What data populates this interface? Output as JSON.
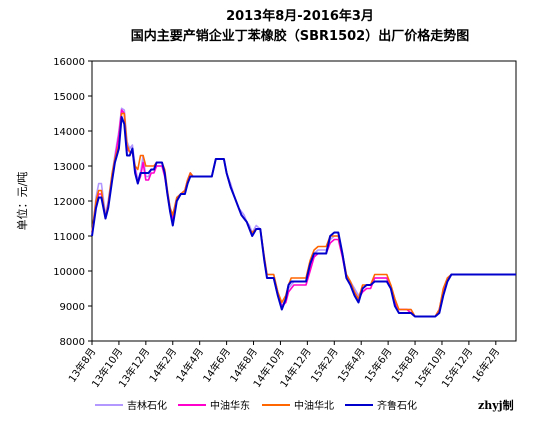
{
  "chart_data": {
    "type": "line",
    "title": "2013年8月-2016年3月",
    "subtitle": "国内主要产销企业丁苯橡胶（SBR1502）出厂价格走势图",
    "ylabel": "单位：元/吨",
    "xlabel": "",
    "ylim": [
      8000,
      16000
    ],
    "yticks": [
      8000,
      9000,
      10000,
      11000,
      12000,
      13000,
      14000,
      15000,
      16000
    ],
    "x_range": [
      0,
      31.5
    ],
    "xtick_positions": [
      0,
      2,
      4,
      6,
      8,
      10,
      12,
      14,
      16,
      18,
      20,
      22,
      24,
      26,
      28,
      30
    ],
    "xtick_labels": [
      "13年8月",
      "13年10月",
      "13年12月",
      "14年2月",
      "14年4月",
      "14年6月",
      "14年8月",
      "14年10月",
      "14年12月",
      "15年2月",
      "15年4月",
      "15年6月",
      "15年8月",
      "15年10月",
      "15年12月",
      "16年2月"
    ],
    "grid": false,
    "legend_position": "bottom",
    "note": "zhyj制",
    "series": [
      {
        "name": "吉林石化",
        "color": "#b399ff",
        "x": [
          0,
          0.3,
          0.5,
          0.7,
          1,
          1.2,
          1.5,
          1.7,
          2,
          2.2,
          2.4,
          2.6,
          2.8,
          3,
          3.2,
          3.4,
          3.6,
          3.8,
          4,
          4.2,
          4.4,
          4.6,
          4.8,
          5,
          5.2,
          5.4,
          5.6,
          5.8,
          6,
          6.3,
          6.6,
          6.9,
          7.1,
          7.3,
          7.5,
          7.7,
          8,
          8.3,
          8.6,
          8.9,
          9.2,
          9.5,
          9.8,
          10,
          10.3,
          10.6,
          10.9,
          11.1,
          11.3,
          11.5,
          11.7,
          11.9,
          12.2,
          12.5,
          12.8,
          13,
          13.2,
          13.5,
          13.8,
          14.1,
          14.4,
          14.6,
          14.8,
          15,
          15.3,
          15.6,
          15.9,
          16.2,
          16.5,
          16.8,
          17.1,
          17.4,
          17.7,
          18,
          18.3,
          18.6,
          18.9,
          19.2,
          19.5,
          19.8,
          20.1,
          20.4,
          20.7,
          21,
          21.3,
          21.6,
          21.9,
          22.2,
          22.5,
          22.8,
          23.1,
          23.4,
          23.7,
          24,
          24.3,
          24.6,
          24.9,
          25.2,
          25.5,
          25.8,
          26.1,
          26.4,
          26.7,
          27,
          27.3,
          27.6,
          27.9,
          28.2,
          28.5,
          28.8,
          29.1,
          29.4,
          29.7,
          30,
          30.3,
          30.6,
          30.9,
          31.2,
          31.5
        ],
        "values": [
          11000,
          12100,
          12500,
          12500,
          11600,
          12000,
          12800,
          13300,
          14000,
          14650,
          14600,
          13700,
          13500,
          13600,
          13000,
          12600,
          12800,
          13300,
          12700,
          12700,
          12900,
          12900,
          13000,
          13000,
          13000,
          12800,
          12300,
          11800,
          11600,
          12100,
          12200,
          12300,
          12600,
          12800,
          12700,
          12700,
          12700,
          12700,
          12700,
          12700,
          13200,
          13200,
          13200,
          12800,
          12500,
          12100,
          11800,
          11700,
          11600,
          11400,
          11300,
          11100,
          11300,
          11200,
          10400,
          9900,
          9900,
          9900,
          9400,
          9000,
          9200,
          9500,
          9600,
          9700,
          9700,
          9700,
          9700,
          10100,
          10500,
          10600,
          10600,
          10600,
          10900,
          11000,
          11000,
          10500,
          9900,
          9700,
          9500,
          9300,
          9500,
          9600,
          9600,
          9800,
          9800,
          9800,
          9800,
          9600,
          9200,
          8900,
          8900,
          8900,
          8900,
          8700,
          8700,
          8700,
          8700,
          8700,
          8700,
          8900,
          9500,
          9800,
          9900,
          9900,
          9900,
          9900,
          9900,
          9900,
          9900,
          9900,
          9900,
          9900,
          9900,
          9900,
          9900,
          9900,
          9900,
          9900,
          9900
        ]
      },
      {
        "name": "中油华东",
        "color": "#ff00cc",
        "x": [
          0,
          0.3,
          0.5,
          0.7,
          1,
          1.2,
          1.5,
          1.7,
          2,
          2.2,
          2.4,
          2.6,
          2.8,
          3,
          3.2,
          3.4,
          3.6,
          3.8,
          4,
          4.2,
          4.4,
          4.6,
          4.8,
          5,
          5.2,
          5.4,
          5.6,
          5.8,
          6,
          6.3,
          6.6,
          6.9,
          7.1,
          7.3,
          7.5,
          7.7,
          8,
          8.3,
          8.6,
          8.9,
          9.2,
          9.5,
          9.8,
          10,
          10.3,
          10.6,
          10.9,
          11.1,
          11.3,
          11.5,
          11.7,
          11.9,
          12.2,
          12.5,
          12.8,
          13,
          13.2,
          13.5,
          13.8,
          14.1,
          14.4,
          14.6,
          14.8,
          15,
          15.3,
          15.6,
          15.9,
          16.2,
          16.5,
          16.8,
          17.1,
          17.4,
          17.7,
          18,
          18.3,
          18.6,
          18.9,
          19.2,
          19.5,
          19.8,
          20.1,
          20.4,
          20.7,
          21,
          21.3,
          21.6,
          21.9,
          22.2,
          22.5,
          22.8,
          23.1,
          23.4,
          23.7,
          24,
          24.3,
          24.6,
          24.9,
          25.2,
          25.5,
          25.8,
          26.1,
          26.4,
          26.7,
          27,
          27.3,
          27.6,
          27.9,
          28.2,
          28.5,
          28.8,
          29.1,
          29.4,
          29.7,
          30,
          30.3,
          30.6,
          30.9,
          31.2,
          31.5
        ],
        "values": [
          11100,
          11900,
          12200,
          12200,
          11500,
          11900,
          12700,
          13200,
          13900,
          14600,
          14500,
          13500,
          13400,
          13400,
          12900,
          12500,
          12700,
          13100,
          12600,
          12600,
          12800,
          12800,
          13000,
          13000,
          13000,
          12700,
          12200,
          11700,
          11500,
          12000,
          12200,
          12300,
          12600,
          12800,
          12700,
          12700,
          12700,
          12700,
          12700,
          12700,
          13200,
          13200,
          13200,
          12800,
          12400,
          12100,
          11800,
          11600,
          11500,
          11400,
          11200,
          11000,
          11200,
          11200,
          10300,
          9800,
          9800,
          9800,
          9300,
          9000,
          9100,
          9400,
          9500,
          9600,
          9600,
          9600,
          9600,
          10000,
          10400,
          10500,
          10500,
          10500,
          10800,
          10900,
          10900,
          10400,
          9800,
          9600,
          9400,
          9200,
          9400,
          9500,
          9500,
          9800,
          9800,
          9800,
          9800,
          9500,
          9100,
          8900,
          8900,
          8900,
          8800,
          8700,
          8700,
          8700,
          8700,
          8700,
          8700,
          8900,
          9400,
          9700,
          9900,
          9900,
          9900,
          9900,
          9900,
          9900,
          9900,
          9900,
          9900,
          9900,
          9900,
          9900,
          9900,
          9900,
          9900,
          9900,
          9900
        ]
      },
      {
        "name": "中油华北",
        "color": "#ff6600",
        "x": [
          0,
          0.3,
          0.5,
          0.7,
          1,
          1.2,
          1.5,
          1.7,
          2,
          2.2,
          2.4,
          2.6,
          2.8,
          3,
          3.2,
          3.4,
          3.6,
          3.8,
          4,
          4.2,
          4.4,
          4.6,
          4.8,
          5,
          5.2,
          5.4,
          5.6,
          5.8,
          6,
          6.3,
          6.6,
          6.9,
          7.1,
          7.3,
          7.5,
          7.7,
          8,
          8.3,
          8.6,
          8.9,
          9.2,
          9.5,
          9.8,
          10,
          10.3,
          10.6,
          10.9,
          11.1,
          11.3,
          11.5,
          11.7,
          11.9,
          12.2,
          12.5,
          12.8,
          13,
          13.2,
          13.5,
          13.8,
          14.1,
          14.4,
          14.6,
          14.8,
          15,
          15.3,
          15.6,
          15.9,
          16.2,
          16.5,
          16.8,
          17.1,
          17.4,
          17.7,
          18,
          18.3,
          18.6,
          18.9,
          19.2,
          19.5,
          19.8,
          20.1,
          20.4,
          20.7,
          21,
          21.3,
          21.6,
          21.9,
          22.2,
          22.5,
          22.8,
          23.1,
          23.4,
          23.7,
          24,
          24.3,
          24.6,
          24.9,
          25.2,
          25.5,
          25.8,
          26.1,
          26.4,
          26.7,
          27,
          27.3,
          27.6,
          27.9,
          28.2,
          28.5,
          28.8,
          29.1,
          29.4,
          29.7,
          30,
          30.3,
          30.6,
          30.9,
          31.2,
          31.5
        ],
        "values": [
          11100,
          12000,
          12300,
          12300,
          11500,
          11900,
          12800,
          13200,
          13600,
          14500,
          14500,
          13600,
          13400,
          13400,
          13000,
          12900,
          13300,
          13300,
          13000,
          13000,
          13000,
          13000,
          13100,
          13100,
          13100,
          12900,
          12300,
          11800,
          11600,
          12100,
          12200,
          12300,
          12600,
          12800,
          12700,
          12700,
          12700,
          12700,
          12700,
          12700,
          13200,
          13200,
          13200,
          12800,
          12400,
          12100,
          11800,
          11600,
          11500,
          11400,
          11200,
          11100,
          11200,
          11200,
          10400,
          9900,
          9900,
          9900,
          9400,
          9100,
          9300,
          9600,
          9800,
          9800,
          9800,
          9800,
          9800,
          10300,
          10600,
          10700,
          10700,
          10700,
          11000,
          11000,
          11000,
          10500,
          9900,
          9700,
          9400,
          9200,
          9600,
          9600,
          9600,
          9900,
          9900,
          9900,
          9900,
          9600,
          9200,
          8900,
          8900,
          8900,
          8900,
          8700,
          8700,
          8700,
          8700,
          8700,
          8700,
          8900,
          9500,
          9800,
          9900,
          9900,
          9900,
          9900,
          9900,
          9900,
          9900,
          9900,
          9900,
          9900,
          9900,
          9900,
          9900,
          9900,
          9900,
          9900,
          9900
        ]
      },
      {
        "name": "齐鲁石化",
        "color": "#0000cc",
        "x": [
          0,
          0.3,
          0.5,
          0.7,
          1,
          1.2,
          1.5,
          1.7,
          2,
          2.2,
          2.4,
          2.6,
          2.8,
          3,
          3.2,
          3.4,
          3.6,
          3.8,
          4,
          4.2,
          4.4,
          4.6,
          4.8,
          5,
          5.2,
          5.4,
          5.6,
          5.8,
          6,
          6.3,
          6.6,
          6.9,
          7.1,
          7.3,
          7.5,
          7.7,
          8,
          8.3,
          8.6,
          8.9,
          9.2,
          9.5,
          9.8,
          10,
          10.3,
          10.6,
          10.9,
          11.1,
          11.3,
          11.5,
          11.7,
          11.9,
          12.2,
          12.5,
          12.8,
          13,
          13.2,
          13.5,
          13.8,
          14.1,
          14.4,
          14.6,
          14.8,
          15,
          15.3,
          15.6,
          15.9,
          16.2,
          16.5,
          16.8,
          17.1,
          17.4,
          17.7,
          18,
          18.3,
          18.6,
          18.9,
          19.2,
          19.5,
          19.8,
          20.1,
          20.4,
          20.7,
          21,
          21.3,
          21.6,
          21.9,
          22.2,
          22.5,
          22.8,
          23.1,
          23.4,
          23.7,
          24,
          24.3,
          24.6,
          24.9,
          25.2,
          25.5,
          25.8,
          26.1,
          26.4,
          26.7,
          27,
          27.3,
          27.6,
          27.9,
          28.2,
          28.5,
          28.8,
          29.1,
          29.4,
          29.7,
          30,
          30.3,
          30.6,
          30.9,
          31.2,
          31.5
        ],
        "values": [
          11000,
          11800,
          12100,
          12100,
          11500,
          11800,
          12600,
          13100,
          13500,
          14400,
          14200,
          13300,
          13300,
          13500,
          12800,
          12500,
          12800,
          12800,
          12800,
          12800,
          12900,
          12900,
          13100,
          13100,
          13100,
          12800,
          12200,
          11700,
          11300,
          12000,
          12200,
          12200,
          12500,
          12700,
          12700,
          12700,
          12700,
          12700,
          12700,
          12700,
          13200,
          13200,
          13200,
          12800,
          12400,
          12100,
          11800,
          11600,
          11500,
          11400,
          11200,
          11000,
          11200,
          11200,
          10300,
          9800,
          9800,
          9800,
          9300,
          8900,
          9200,
          9600,
          9700,
          9700,
          9700,
          9700,
          9700,
          10200,
          10500,
          10500,
          10500,
          10500,
          11000,
          11100,
          11100,
          10500,
          9800,
          9600,
          9300,
          9100,
          9500,
          9600,
          9600,
          9700,
          9700,
          9700,
          9700,
          9500,
          9000,
          8800,
          8800,
          8800,
          8800,
          8700,
          8700,
          8700,
          8700,
          8700,
          8700,
          8800,
          9300,
          9700,
          9900,
          9900,
          9900,
          9900,
          9900,
          9900,
          9900,
          9900,
          9900,
          9900,
          9900,
          9900,
          9900,
          9900,
          9900,
          9900,
          9900
        ]
      }
    ]
  }
}
